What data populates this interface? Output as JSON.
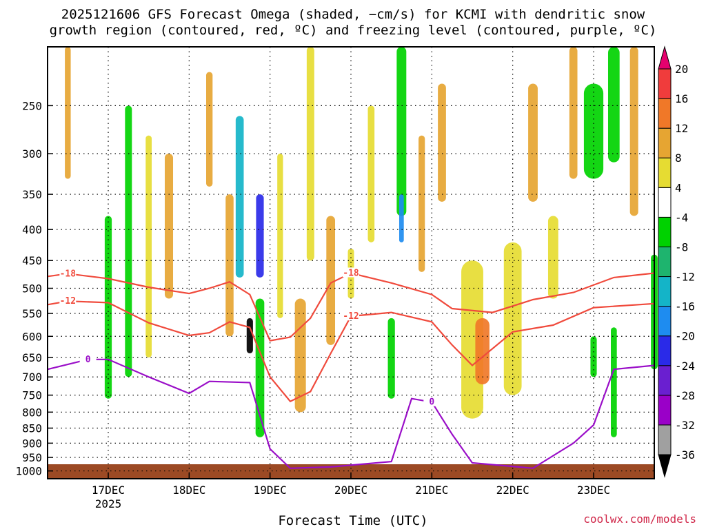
{
  "title_line1": "2025121606 GFS Forecast Omega (shaded, −cm/s) for KCMI with dendritic snow",
  "title_line2": "growth region (contoured, red, ºC) and freezing level (contoured, purple, ºC)",
  "credit": "coolwx.com/models",
  "chart_data": {
    "type": "heatmap",
    "title": "2025121606 GFS Forecast Omega (shaded, −cm/s) for KCMI with dendritic snow growth region (contoured, red, ºC) and freezing level (contoured, purple, ºC)",
    "xlabel": "Forecast Time (UTC)",
    "ylabel": "",
    "x_ticks": [
      "17DEC",
      "18DEC",
      "19DEC",
      "20DEC",
      "21DEC",
      "22DEC",
      "23DEC"
    ],
    "x_tick_sublabel": "2025",
    "xlim": [
      "2025-12-16 06Z",
      "2025-12-23 18Z"
    ],
    "y_ticks": [
      250,
      300,
      350,
      400,
      450,
      500,
      550,
      600,
      650,
      700,
      750,
      800,
      850,
      900,
      950,
      1000
    ],
    "ylim": [
      1030,
      200
    ],
    "y_scale": "reversed pressure (hPa)",
    "grid": true,
    "colorbar": {
      "levels": [
        -36,
        -32,
        -28,
        -24,
        -20,
        -16,
        -12,
        -8,
        -4,
        4,
        8,
        12,
        16,
        20
      ],
      "colors": [
        "#000000",
        "#a0a0a0",
        "#9a00c8",
        "#6a1fd0",
        "#2a2ae8",
        "#1e8cf0",
        "#14b4c8",
        "#1eb46e",
        "#00d200",
        "#ffffff",
        "#e6dc32",
        "#e6a532",
        "#f07828",
        "#f03c3c",
        "#e6006e"
      ]
    },
    "series": [
      {
        "name": "-18",
        "color": "#f04a3c",
        "points": [
          [
            "16DEC 06Z",
            478
          ],
          [
            "16DEC 12Z",
            473
          ],
          [
            "17DEC 00Z",
            482
          ],
          [
            "17DEC 12Z",
            498
          ],
          [
            "18DEC 00Z",
            510
          ],
          [
            "18DEC 06Z",
            500
          ],
          [
            "18DEC 12Z",
            488
          ],
          [
            "18DEC 18Z",
            512
          ],
          [
            "19DEC 00Z",
            610
          ],
          [
            "19DEC 06Z",
            602
          ],
          [
            "19DEC 12Z",
            560
          ],
          [
            "19DEC 18Z",
            490
          ],
          [
            "20DEC 00Z",
            472
          ],
          [
            "20DEC 12Z",
            490
          ],
          [
            "21DEC 00Z",
            512
          ],
          [
            "21DEC 06Z",
            540
          ],
          [
            "21DEC 18Z",
            548
          ],
          [
            "22DEC 06Z",
            522
          ],
          [
            "22DEC 18Z",
            508
          ],
          [
            "23DEC 06Z",
            480
          ],
          [
            "23DEC 18Z",
            472
          ]
        ]
      },
      {
        "name": "-12",
        "color": "#f04a3c",
        "points": [
          [
            "16DEC 06Z",
            532
          ],
          [
            "16DEC 12Z",
            525
          ],
          [
            "17DEC 00Z",
            528
          ],
          [
            "17DEC 12Z",
            570
          ],
          [
            "18DEC 00Z",
            598
          ],
          [
            "18DEC 06Z",
            592
          ],
          [
            "18DEC 12Z",
            568
          ],
          [
            "18DEC 18Z",
            580
          ],
          [
            "19DEC 00Z",
            700
          ],
          [
            "19DEC 06Z",
            768
          ],
          [
            "19DEC 12Z",
            740
          ],
          [
            "19DEC 18Z",
            640
          ],
          [
            "20DEC 00Z",
            556
          ],
          [
            "20DEC 12Z",
            548
          ],
          [
            "21DEC 00Z",
            568
          ],
          [
            "21DEC 06Z",
            620
          ],
          [
            "21DEC 12Z",
            670
          ],
          [
            "22DEC 00Z",
            590
          ],
          [
            "22DEC 12Z",
            575
          ],
          [
            "23DEC 00Z",
            538
          ],
          [
            "23DEC 18Z",
            530
          ]
        ]
      },
      {
        "name": "0",
        "color": "#9a0ec8",
        "points": [
          [
            "16DEC 06Z",
            680
          ],
          [
            "16DEC 18Z",
            655
          ],
          [
            "17DEC 00Z",
            655
          ],
          [
            "17DEC 12Z",
            700
          ],
          [
            "18DEC 00Z",
            745
          ],
          [
            "18DEC 06Z",
            712
          ],
          [
            "18DEC 18Z",
            715
          ],
          [
            "19DEC 00Z",
            920
          ],
          [
            "19DEC 06Z",
            990
          ],
          [
            "19DEC 18Z",
            985
          ],
          [
            "20DEC 12Z",
            965
          ],
          [
            "20DEC 18Z",
            760
          ],
          [
            "21DEC 00Z",
            770
          ],
          [
            "21DEC 06Z",
            870
          ],
          [
            "21DEC 12Z",
            970
          ],
          [
            "22DEC 06Z",
            990
          ],
          [
            "22DEC 18Z",
            900
          ],
          [
            "23DEC 00Z",
            840
          ],
          [
            "23DEC 06Z",
            680
          ],
          [
            "23DEC 18Z",
            670
          ]
        ]
      }
    ],
    "contour_labels": [
      "-18",
      "-12",
      "0"
    ]
  }
}
